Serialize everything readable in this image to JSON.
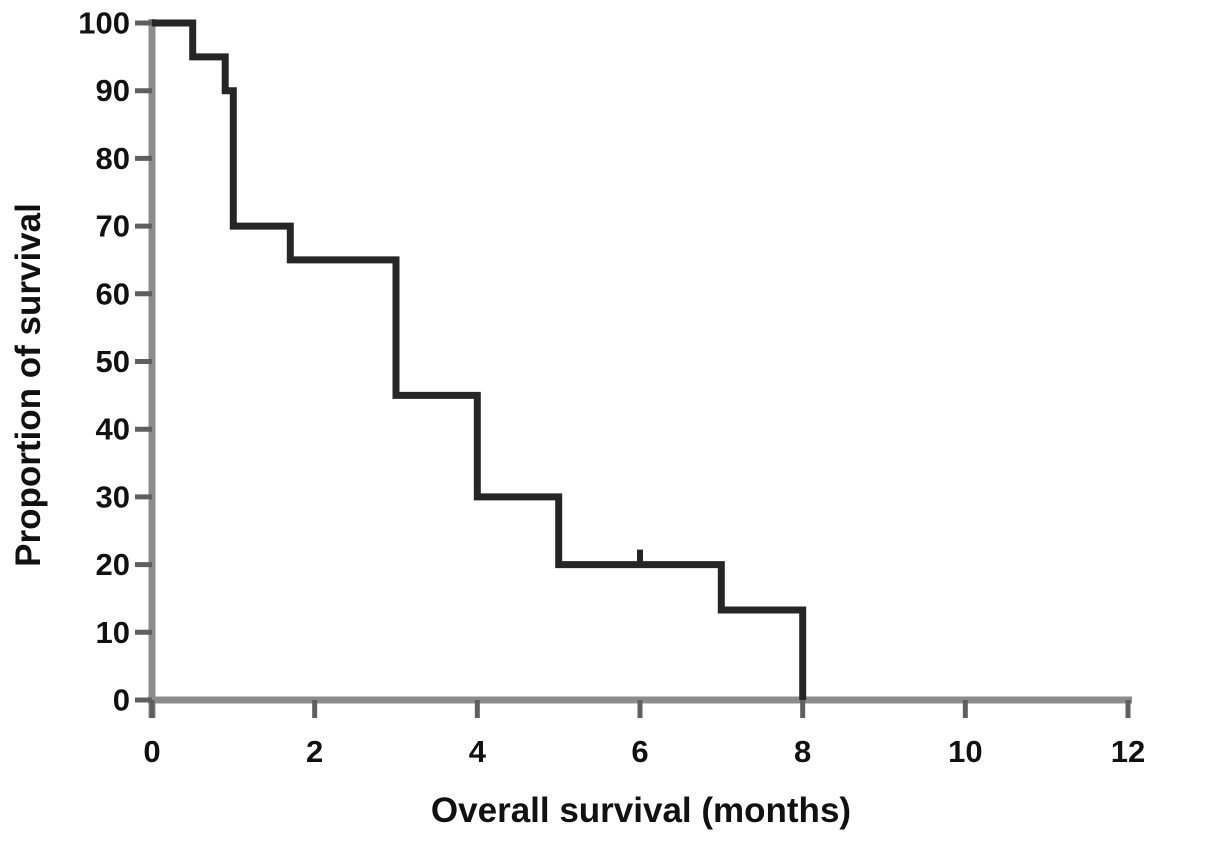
{
  "chart_data": {
    "type": "line",
    "subtype": "kaplan-meier-step",
    "title": "",
    "xlabel": "Overall survival (months)",
    "ylabel": "Proportion of survival",
    "xlim": [
      0,
      12
    ],
    "ylim": [
      0,
      100
    ],
    "xticks": [
      "0",
      "2",
      "4",
      "6",
      "8",
      "10",
      "12"
    ],
    "xtick_values": [
      0,
      2,
      4,
      6,
      8,
      10,
      12
    ],
    "yticks": [
      "0",
      "10",
      "20",
      "30",
      "40",
      "50",
      "60",
      "70",
      "80",
      "90",
      "100"
    ],
    "ytick_values": [
      0,
      10,
      20,
      30,
      40,
      50,
      60,
      70,
      80,
      90,
      100
    ],
    "grid": false,
    "legend": null,
    "series": [
      {
        "name": "Overall survival",
        "step_points": [
          [
            0,
            100
          ],
          [
            0.5,
            100
          ],
          [
            0.5,
            95
          ],
          [
            0.9,
            95
          ],
          [
            0.9,
            90
          ],
          [
            1.0,
            90
          ],
          [
            1.0,
            70
          ],
          [
            1.7,
            70
          ],
          [
            1.7,
            65
          ],
          [
            3,
            65
          ],
          [
            3,
            45
          ],
          [
            4,
            45
          ],
          [
            4,
            30
          ],
          [
            5,
            30
          ],
          [
            5,
            20
          ],
          [
            7,
            20
          ],
          [
            7,
            13.3
          ],
          [
            8,
            13.3
          ],
          [
            8,
            0
          ]
        ],
        "censored_points": [
          [
            6,
            20
          ]
        ],
        "color": "#262626"
      }
    ],
    "colors": {
      "curve": "#262626",
      "axis": "#8c8c8c",
      "tick": "#5f5f5f",
      "text": "#111111",
      "background": "#ffffff"
    }
  }
}
